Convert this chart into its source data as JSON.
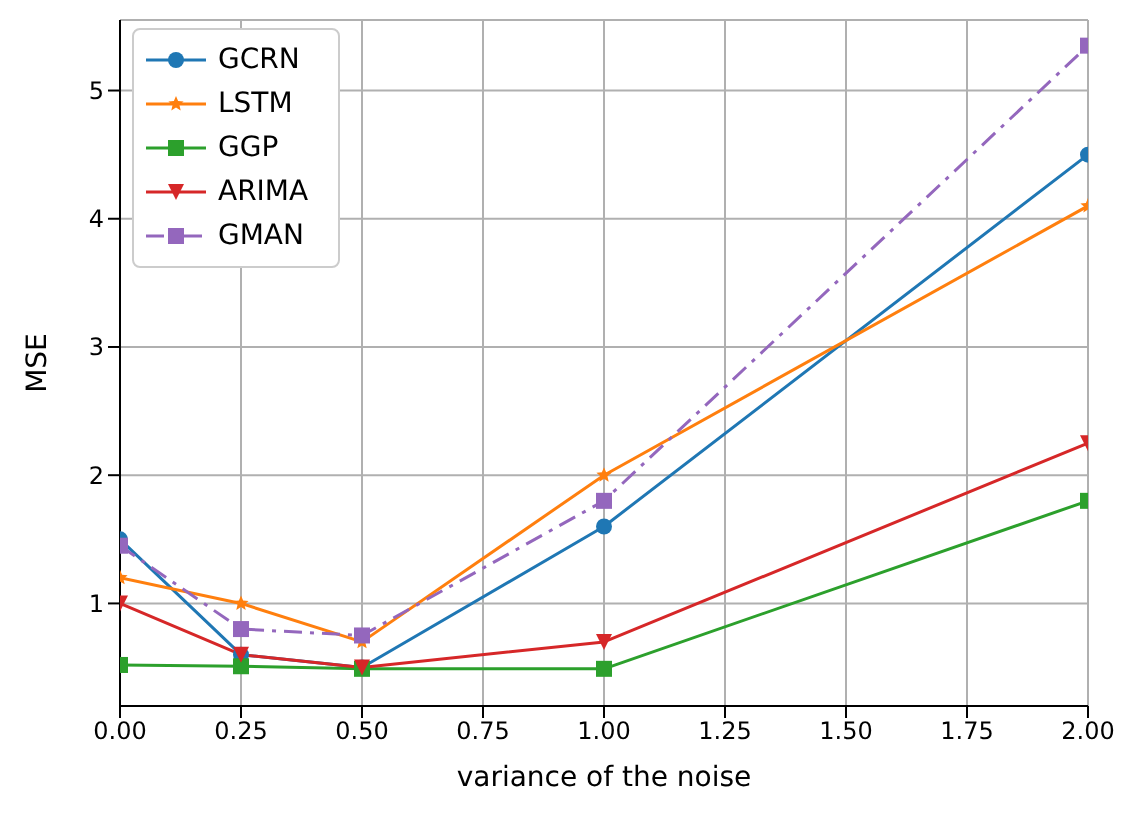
{
  "chart_data": {
    "type": "line",
    "xlabel": "variance of the noise",
    "ylabel": "MSE",
    "x": [
      0,
      0.25,
      0.5,
      1,
      2
    ],
    "series": [
      {
        "name": "GCRN",
        "color": "#1f77b4",
        "marker": "circle",
        "values": [
          1.5,
          0.6,
          0.5,
          1.6,
          4.5
        ]
      },
      {
        "name": "LSTM",
        "color": "#ff7f0e",
        "marker": "star",
        "values": [
          1.2,
          1.0,
          0.7,
          2.0,
          4.1
        ]
      },
      {
        "name": "GGP",
        "color": "#2ca02c",
        "marker": "square",
        "values": [
          0.52,
          0.51,
          0.49,
          0.49,
          1.8
        ]
      },
      {
        "name": "ARIMA",
        "color": "#d62728",
        "marker": "triangle",
        "values": [
          1.0,
          0.6,
          0.5,
          0.7,
          2.25
        ]
      },
      {
        "name": "GMAN",
        "color": "#9467bd",
        "marker": "square",
        "line_style": "dashed",
        "values": [
          1.45,
          0.8,
          0.75,
          1.8,
          5.35
        ]
      }
    ],
    "xlim": [
      0,
      2
    ],
    "xticks": [
      {
        "value": 0,
        "label": "0.00"
      },
      {
        "value": 0.25,
        "label": "0.25"
      },
      {
        "value": 0.5,
        "label": "0.50"
      },
      {
        "value": 0.75,
        "label": "0.75"
      },
      {
        "value": 1,
        "label": "1.00"
      },
      {
        "value": 1.25,
        "label": "1.25"
      },
      {
        "value": 1.5,
        "label": "1.50"
      },
      {
        "value": 1.75,
        "label": "1.75"
      },
      {
        "value": 2,
        "label": "2.00"
      }
    ],
    "ylim": [
      0.2,
      5.55
    ],
    "yticks": [
      1,
      2,
      3,
      4,
      5
    ],
    "grid": true,
    "legend": "top left"
  }
}
